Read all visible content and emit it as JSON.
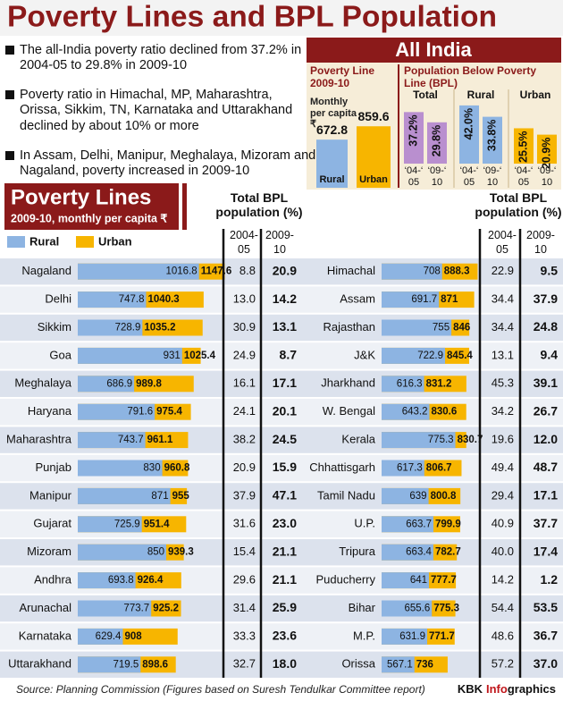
{
  "header": {
    "title": "Poverty Lines and BPL Population"
  },
  "bullets": [
    "The all-India poverty ratio declined from 37.2% in 2004-05 to 29.8% in 2009-10",
    "Poverty ratio in Himachal, MP, Maharashtra, Orissa, Sikkim, TN, Karnataka and Uttarakhand declined by about 10% or more",
    "In Assam, Delhi, Manipur, Meghalaya, Mizoram and Nagaland, poverty increased in 2009-10"
  ],
  "all_india": {
    "title": "All India",
    "poverty_line": {
      "title": "Poverty Line 2009-10",
      "unit": "Monthly per capita ₹",
      "categories": [
        "Rural",
        "Urban"
      ],
      "values": [
        672.8,
        859.6
      ]
    },
    "bpl": {
      "title": "Population Below Poverty Line (BPL)",
      "periods": [
        "‘04-‘05",
        "‘09-‘10"
      ],
      "groups": [
        {
          "name": "Total",
          "color": "#b98fcf",
          "values": [
            37.2,
            29.8
          ],
          "value_labels": [
            "37.2%",
            "29.8%"
          ]
        },
        {
          "name": "Rural",
          "color": "#8db4e2",
          "values": [
            42.0,
            33.8
          ],
          "value_labels": [
            "42.0%",
            "33.8%"
          ]
        },
        {
          "name": "Urban",
          "color": "#f7b500",
          "values": [
            25.5,
            20.9
          ],
          "value_labels": [
            "25.5%",
            "20.9%"
          ]
        }
      ]
    }
  },
  "poverty_lines": {
    "title": "Poverty Lines",
    "subtitle": "2009-10, monthly per capita ₹",
    "legend": [
      {
        "name": "Rural",
        "color": "#8db4e2"
      },
      {
        "name": "Urban",
        "color": "#f7b500"
      }
    ],
    "bpl_header": "Total BPL population (%)",
    "periods": [
      "2004-05",
      "2009-10"
    ]
  },
  "tables": [
    {
      "states": [
        "Nagaland",
        "Delhi",
        "Sikkim",
        "Goa",
        "Meghalaya",
        "Haryana",
        "Maharashtra",
        "Punjab",
        "Manipur",
        "Gujarat",
        "Mizoram",
        "Andhra",
        "Arunachal",
        "Karnataka",
        "Uttarakhand"
      ],
      "rural": [
        1016.8,
        747.8,
        728.9,
        931,
        686.9,
        791.6,
        743.7,
        830,
        871,
        725.9,
        850,
        693.8,
        773.7,
        629.4,
        719.5
      ],
      "urban": [
        1147.6,
        1040.3,
        1035.2,
        1025.4,
        989.8,
        975.4,
        961.1,
        960.8,
        955,
        951.4,
        939.3,
        926.4,
        925.2,
        908,
        898.6
      ],
      "bpl_2004_05": [
        "8.8",
        "13.0",
        "30.9",
        "24.9",
        "16.1",
        "24.1",
        "38.2",
        "20.9",
        "37.9",
        "31.6",
        "15.4",
        "29.6",
        "31.4",
        "33.3",
        "32.7"
      ],
      "bpl_2009_10": [
        "20.9",
        "14.2",
        "13.1",
        "8.7",
        "17.1",
        "20.1",
        "24.5",
        "15.9",
        "47.1",
        "23.0",
        "21.1",
        "21.1",
        "25.9",
        "23.6",
        "18.0"
      ]
    },
    {
      "states": [
        "Himachal",
        "Assam",
        "Rajasthan",
        "J&K",
        "Jharkhand",
        "W. Bengal",
        "Kerala",
        "Chhattisgarh",
        "Tamil Nadu",
        "U.P.",
        "Tripura",
        "Puducherry",
        "Bihar",
        "M.P.",
        "Orissa"
      ],
      "rural": [
        708,
        691.7,
        755,
        722.9,
        616.3,
        643.2,
        775.3,
        617.3,
        639,
        663.7,
        663.4,
        641,
        655.6,
        631.9,
        567.1
      ],
      "urban": [
        888.3,
        871,
        846,
        845.4,
        831.2,
        830.6,
        830.7,
        806.7,
        800.8,
        799.9,
        782.7,
        777.7,
        775.3,
        771.7,
        736
      ],
      "bpl_2004_05": [
        "22.9",
        "34.4",
        "34.4",
        "13.1",
        "45.3",
        "34.2",
        "19.6",
        "49.4",
        "29.4",
        "40.9",
        "40.0",
        "14.2",
        "54.4",
        "48.6",
        "57.2"
      ],
      "bpl_2009_10": [
        "9.5",
        "37.9",
        "24.8",
        "9.4",
        "39.1",
        "26.7",
        "12.0",
        "48.7",
        "17.1",
        "37.7",
        "17.4",
        "1.2",
        "53.5",
        "36.7",
        "37.0"
      ]
    }
  ],
  "footer": {
    "source": "Source: Planning Commission (Figures based on Suresh Tendulkar Committee report)",
    "credit": [
      "KBK",
      "Info",
      "graphics"
    ]
  }
}
